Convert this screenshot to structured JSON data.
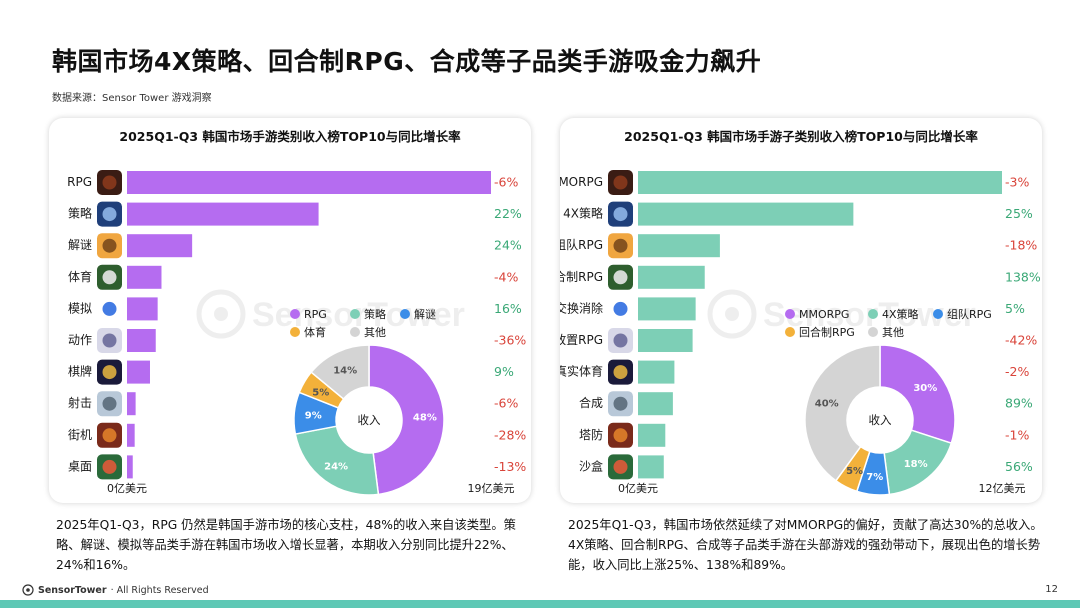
{
  "page": {
    "title": "韩国市场4X策略、回合制RPG、合成等子品类手游吸金力飙升",
    "source": "数据来源：Sensor Tower 游戏洞察",
    "footer": "SensorTower · All Rights Reserved",
    "footer_brand": "SensorTower",
    "footer_rest": " · All Rights Reserved",
    "page_number": "12",
    "watermark": "SensorTower"
  },
  "captions": {
    "left": "2025年Q1-Q3，RPG 仍然是韩国手游市场的核心支柱，48%的收入来自该类型。策略、解谜、模拟等品类手游在韩国市场收入增长显著，本期收入分别同比提升22%、24%和16%。",
    "right": "2025年Q1-Q3，韩国市场依然延续了对MMORPG的偏好，贡献了高达30%的总收入。4X策略、回合制RPG、合成等子品类手游在头部游戏的强劲带动下，展现出色的增长势能，收入同比上涨25%、138%和89%。"
  },
  "colors": {
    "purple": "#b56cf0",
    "teal": "#7dcfb6",
    "blue": "#3b8de8",
    "orange": "#f3b13a",
    "gray": "#d4d4d4",
    "positive": "#3aa876",
    "negative": "#d9443a"
  },
  "chart_data": [
    {
      "type": "bar",
      "orientation": "horizontal",
      "title": "2025Q1-Q3 韩国市场手游类别收入榜TOP10与同比增长率",
      "categories": [
        "RPG",
        "策略",
        "解谜",
        "体育",
        "模拟",
        "动作",
        "棋牌",
        "射击",
        "街机",
        "桌面"
      ],
      "values": [
        19.0,
        10.0,
        3.4,
        1.8,
        1.6,
        1.5,
        1.2,
        0.45,
        0.4,
        0.3
      ],
      "growth": [
        "-6%",
        "22%",
        "24%",
        "-4%",
        "16%",
        "-36%",
        "9%",
        "-6%",
        "-28%",
        "-13%"
      ],
      "growth_sign": [
        -1,
        1,
        1,
        -1,
        1,
        -1,
        1,
        -1,
        -1,
        -1
      ],
      "xlim": [
        0,
        19
      ],
      "axis_min_label": "0亿美元",
      "axis_max_label": "19亿美元",
      "bar_color": "#b56cf0",
      "pie": {
        "type": "pie",
        "center_label": "收入",
        "slices": [
          {
            "name": "RPG",
            "value": 48,
            "label": "48%",
            "color": "#b56cf0"
          },
          {
            "name": "策略",
            "value": 24,
            "label": "24%",
            "color": "#7dcfb6"
          },
          {
            "name": "解谜",
            "value": 9,
            "label": "9%",
            "color": "#3b8de8"
          },
          {
            "name": "体育",
            "value": 5,
            "label": "5%",
            "color": "#f3b13a"
          },
          {
            "name": "其他",
            "value": 14,
            "label": "14%",
            "color": "#d4d4d4"
          }
        ],
        "legend_rows": [
          [
            "RPG",
            "策略",
            "解谜"
          ],
          [
            "体育",
            "其他"
          ]
        ]
      }
    },
    {
      "type": "bar",
      "orientation": "horizontal",
      "title": "2025Q1-Q3 韩国市场手游子类别收入榜TOP10与同比增长率",
      "categories": [
        "MMORPG",
        "4X策略",
        "组队RPG",
        "回合制RPG",
        "交换消除",
        "放置RPG",
        "真实体育",
        "合成",
        "塔防",
        "沙盒"
      ],
      "values": [
        12.0,
        7.1,
        2.7,
        2.2,
        1.9,
        1.8,
        1.2,
        1.15,
        0.9,
        0.85
      ],
      "growth": [
        "-3%",
        "25%",
        "-18%",
        "138%",
        "5%",
        "-42%",
        "-2%",
        "89%",
        "-1%",
        "56%"
      ],
      "growth_sign": [
        -1,
        1,
        -1,
        1,
        1,
        -1,
        -1,
        1,
        -1,
        1
      ],
      "xlim": [
        0,
        12
      ],
      "axis_min_label": "0亿美元",
      "axis_max_label": "12亿美元",
      "bar_color": "#7dcfb6",
      "pie": {
        "type": "pie",
        "center_label": "收入",
        "slices": [
          {
            "name": "MMORPG",
            "value": 30,
            "label": "30%",
            "color": "#b56cf0"
          },
          {
            "name": "4X策略",
            "value": 18,
            "label": "18%",
            "color": "#7dcfb6"
          },
          {
            "name": "组队RPG",
            "value": 7,
            "label": "7%",
            "color": "#3b8de8"
          },
          {
            "name": "回合制RPG",
            "value": 5,
            "label": "5%",
            "color": "#f3b13a"
          },
          {
            "name": "其他",
            "value": 40,
            "label": "40%",
            "color": "#d4d4d4"
          }
        ],
        "legend_rows": [
          [
            "MMORPG",
            "4X策略",
            "组队RPG"
          ],
          [
            "回合制RPG",
            "其他"
          ]
        ]
      }
    }
  ]
}
